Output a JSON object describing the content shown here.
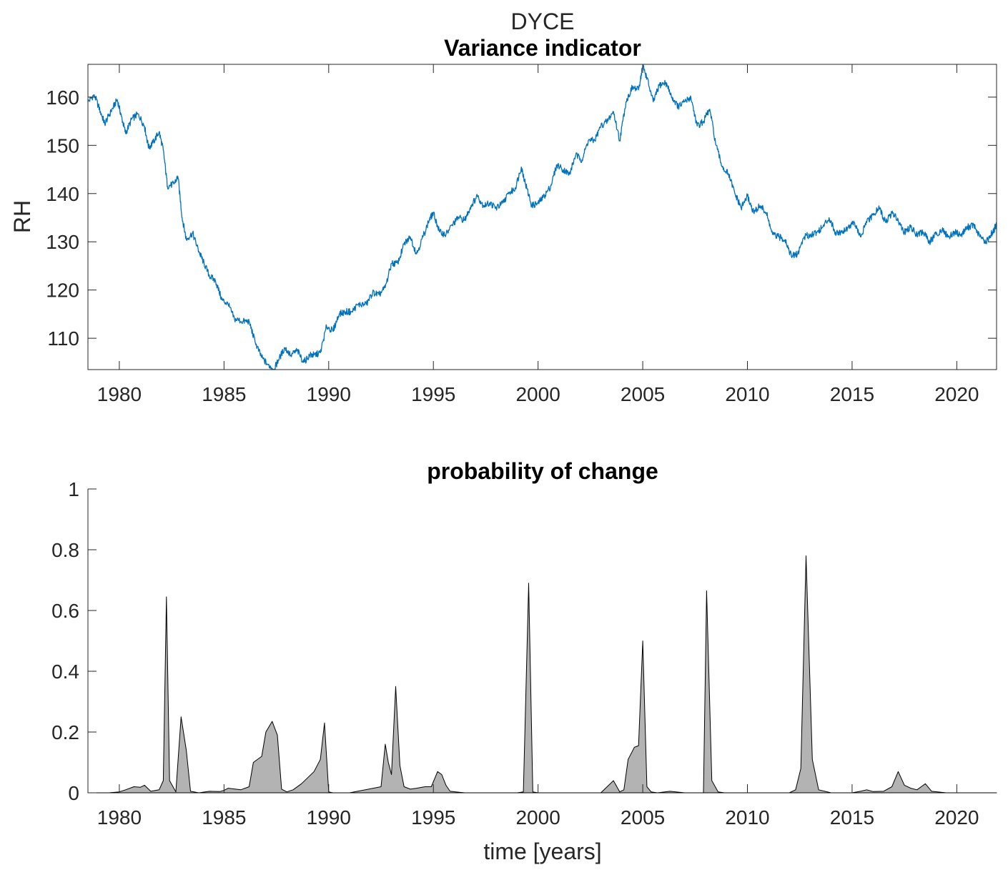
{
  "figure": {
    "suptitle": "DYCE"
  },
  "chart_data": [
    {
      "type": "line",
      "title": "Variance indicator",
      "xlabel": "",
      "ylabel": "RH",
      "xlim": [
        1978.5,
        2021.9
      ],
      "ylim": [
        103.5,
        166.8
      ],
      "xticks": [
        1980,
        1985,
        1990,
        1995,
        2000,
        2005,
        2010,
        2015,
        2020
      ],
      "yticks": [
        110,
        120,
        130,
        140,
        150,
        160
      ],
      "grid": false,
      "line_color": "#0072BD",
      "series": [
        {
          "name": "RH variance indicator",
          "x": [
            1978.5,
            1978.8,
            1979.1,
            1979.3,
            1979.6,
            1979.9,
            1980.1,
            1980.3,
            1980.6,
            1980.9,
            1981.2,
            1981.4,
            1981.6,
            1981.9,
            1982.1,
            1982.3,
            1982.6,
            1982.8,
            1983.0,
            1983.2,
            1983.5,
            1983.8,
            1984.0,
            1984.3,
            1984.6,
            1984.9,
            1985.2,
            1985.5,
            1985.9,
            1986.2,
            1986.5,
            1986.8,
            1987.1,
            1987.4,
            1987.6,
            1987.9,
            1988.2,
            1988.5,
            1988.8,
            1989.1,
            1989.3,
            1989.6,
            1989.9,
            1990.2,
            1990.5,
            1990.8,
            1991.1,
            1991.4,
            1991.8,
            1992.1,
            1992.4,
            1992.7,
            1993.0,
            1993.3,
            1993.6,
            1993.9,
            1994.2,
            1994.5,
            1994.8,
            1995.0,
            1995.3,
            1995.6,
            1995.9,
            1996.2,
            1996.5,
            1996.8,
            1997.1,
            1997.4,
            1997.7,
            1998.0,
            1998.3,
            1998.6,
            1998.9,
            1999.2,
            1999.4,
            1999.7,
            2000.0,
            2000.3,
            2000.6,
            2000.9,
            2001.2,
            2001.5,
            2001.8,
            2002.1,
            2002.4,
            2002.7,
            2003.0,
            2003.3,
            2003.6,
            2003.9,
            2004.2,
            2004.5,
            2004.8,
            2005.0,
            2005.2,
            2005.5,
            2005.8,
            2006.1,
            2006.4,
            2006.7,
            2007.0,
            2007.3,
            2007.6,
            2007.9,
            2008.2,
            2008.5,
            2008.8,
            2009.1,
            2009.4,
            2009.7,
            2010.0,
            2010.3,
            2010.6,
            2010.9,
            2011.2,
            2011.5,
            2011.8,
            2012.1,
            2012.4,
            2012.7,
            2013.0,
            2013.3,
            2013.6,
            2013.9,
            2014.2,
            2014.5,
            2014.8,
            2015.1,
            2015.4,
            2015.7,
            2016.0,
            2016.3,
            2016.6,
            2016.9,
            2017.2,
            2017.5,
            2017.8,
            2018.1,
            2018.4,
            2018.7,
            2019.0,
            2019.3,
            2019.6,
            2019.9,
            2020.2,
            2020.5,
            2020.8,
            2021.1,
            2021.4,
            2021.7,
            2021.9
          ],
          "values": [
            159,
            160.5,
            157,
            154.5,
            157,
            159.5,
            156,
            152.5,
            155.5,
            156.5,
            154,
            149.5,
            150.5,
            152.8,
            149,
            141.5,
            142,
            143.5,
            135,
            130.5,
            131.8,
            128,
            126,
            123,
            121.8,
            118,
            117,
            114,
            113.5,
            113.5,
            109,
            106,
            104.5,
            103.6,
            105.5,
            108,
            106.5,
            107.5,
            105,
            106.5,
            106.5,
            107,
            112.5,
            111.5,
            115,
            115.5,
            115.5,
            117,
            117,
            119.5,
            119,
            120.5,
            125.5,
            125.5,
            129.5,
            131,
            127.5,
            131,
            134.5,
            136,
            132,
            131.5,
            133.5,
            135,
            134.5,
            137.5,
            139.5,
            137.5,
            138,
            137,
            138,
            140,
            141,
            145.5,
            142,
            137.5,
            138,
            139.5,
            141.5,
            146,
            145,
            144,
            148,
            147,
            151,
            151,
            154,
            155,
            157,
            151,
            159,
            162,
            161.5,
            166.5,
            164,
            159,
            162.5,
            163,
            160,
            158,
            159,
            160,
            154,
            155,
            157.5,
            150,
            145.5,
            144,
            140,
            137,
            139.5,
            136,
            137.5,
            136,
            131.5,
            131,
            130.5,
            127,
            127.5,
            131,
            131.5,
            132,
            133,
            135,
            132,
            132,
            133,
            134,
            131,
            134,
            135.5,
            137,
            134,
            136,
            134.5,
            132,
            133,
            131.5,
            132,
            130,
            131.5,
            132.5,
            131,
            132,
            131.5,
            133,
            133.5,
            131,
            130,
            132,
            133.5
          ]
        }
      ]
    },
    {
      "type": "area",
      "title": "probability of change",
      "xlabel": "time [years]",
      "ylabel": "",
      "xlim": [
        1978.5,
        2021.9
      ],
      "ylim": [
        0,
        1
      ],
      "xticks": [
        1980,
        1985,
        1990,
        1995,
        2000,
        2005,
        2010,
        2015,
        2020
      ],
      "yticks": [
        0,
        0.2,
        0.4,
        0.6,
        0.8,
        1
      ],
      "ytick_labels": [
        "0",
        "0.2",
        "0.4",
        "0.6",
        "0.8",
        "1"
      ],
      "grid": false,
      "fill_color": "#b3b3b3",
      "edge_color": "#000000",
      "series": [
        {
          "name": "probability of change",
          "x": [
            1978.5,
            1979.5,
            1980.0,
            1980.3,
            1980.7,
            1981.0,
            1981.2,
            1981.5,
            1981.9,
            1982.1,
            1982.25,
            1982.4,
            1982.7,
            1982.95,
            1983.2,
            1983.4,
            1983.8,
            1984.3,
            1984.8,
            1985.0,
            1985.2,
            1985.8,
            1986.2,
            1986.4,
            1986.8,
            1987.0,
            1987.3,
            1987.55,
            1987.75,
            1988.0,
            1988.3,
            1988.7,
            1989.3,
            1989.6,
            1989.8,
            1990.0,
            1990.2,
            1990.5,
            1991.0,
            1992.5,
            1992.7,
            1992.85,
            1993.0,
            1993.2,
            1993.4,
            1993.6,
            1993.9,
            1994.2,
            1994.6,
            1994.9,
            1995.2,
            1995.4,
            1995.6,
            1995.8,
            1996.5,
            1999.0,
            1999.3,
            1999.55,
            1999.75,
            2000.0,
            2001.0,
            2003.0,
            2003.6,
            2003.9,
            2004.1,
            2004.3,
            2004.6,
            2004.8,
            2005.0,
            2005.2,
            2005.4,
            2005.7,
            2006.3,
            2007.0,
            2007.9,
            2008.05,
            2008.3,
            2008.6,
            2008.9,
            2009.5,
            2010.5,
            2012.0,
            2012.3,
            2012.55,
            2012.8,
            2013.1,
            2013.4,
            2014.0,
            2015.0,
            2015.4,
            2015.7,
            2016.0,
            2016.5,
            2016.9,
            2017.2,
            2017.5,
            2017.8,
            2018.1,
            2018.3,
            2018.5,
            2018.8,
            2019.5,
            2021.9
          ],
          "values": [
            0,
            0,
            0.003,
            0.01,
            0.02,
            0.018,
            0.025,
            0.005,
            0.01,
            0.04,
            0.645,
            0.04,
            0.003,
            0.25,
            0.14,
            0.005,
            0,
            0.005,
            0.004,
            0.008,
            0.015,
            0.01,
            0.02,
            0.1,
            0.12,
            0.2,
            0.235,
            0.19,
            0.012,
            0.003,
            0.01,
            0.03,
            0.07,
            0.11,
            0.23,
            0.003,
            0,
            0,
            0,
            0.02,
            0.16,
            0.1,
            0.06,
            0.35,
            0.09,
            0.02,
            0.012,
            0.015,
            0.02,
            0.02,
            0.07,
            0.06,
            0.025,
            0.005,
            0,
            0,
            0.003,
            0.69,
            0.003,
            0,
            0,
            0,
            0.04,
            0.003,
            0.01,
            0.11,
            0.15,
            0.155,
            0.5,
            0.02,
            0.003,
            0,
            0.005,
            0,
            0,
            0.665,
            0.04,
            0.003,
            0,
            0,
            0,
            0,
            0.01,
            0.08,
            0.78,
            0.11,
            0.01,
            0,
            0,
            0.005,
            0.01,
            0.004,
            0.005,
            0.02,
            0.07,
            0.025,
            0.015,
            0.01,
            0.02,
            0.03,
            0.005,
            0,
            0
          ]
        }
      ]
    }
  ]
}
